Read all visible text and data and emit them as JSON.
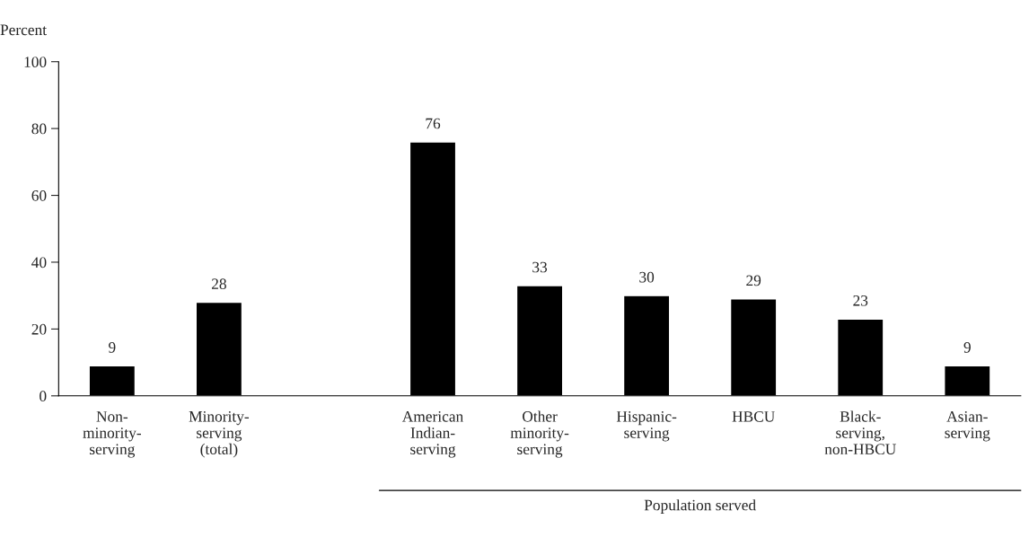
{
  "chart_data": {
    "type": "bar",
    "ylabel": "Percent",
    "categories": [
      "Non-\nminority-\nserving",
      "Minority-\nserving\n(total)",
      null,
      "American\nIndian-\nserving",
      "Other\nminority-\nserving",
      "Hispanic-\nserving",
      "HBCU",
      "Black-\nserving,\nnon-HBCU",
      "Asian-\nserving"
    ],
    "values": [
      9,
      28,
      null,
      76,
      33,
      30,
      29,
      23,
      9
    ],
    "color": "#000000",
    "ylim": [
      0,
      100
    ],
    "yticks": [
      0,
      20,
      40,
      60,
      80,
      100
    ],
    "data_labels": true,
    "grid": false,
    "legend": false,
    "annotations": [
      "Population served"
    ]
  }
}
